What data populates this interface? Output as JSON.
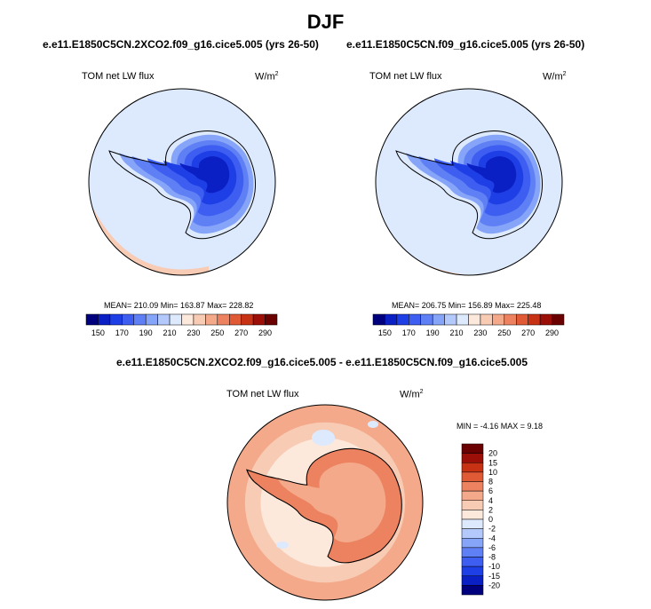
{
  "figure": {
    "title": "DJF",
    "panels": [
      {
        "title": "e.e11.E1850C5CN.2XCO2.f09_g16.cice5.005 (yrs 26-50)",
        "variable": "TOM net LW flux",
        "units_base": "W/m",
        "units_exp": "2",
        "stats": "MEAN= 210.09  Min= 163.87  Max= 228.82"
      },
      {
        "title": "e.e11.E1850C5CN.f09_g16.cice5.005 (yrs 26-50)",
        "variable": "TOM net LW flux",
        "units_base": "W/m",
        "units_exp": "2",
        "stats": "MEAN= 206.75  Min= 156.89  Max= 225.48"
      },
      {
        "title": "e.e11.E1850C5CN.2XCO2.f09_g16.cice5.005 - e.e11.E1850C5CN.f09_g16.cice5.005",
        "variable": "TOM net LW flux",
        "units_base": "W/m",
        "units_exp": "2",
        "stats": "MIN =  -4.16 MAX =   9.18"
      }
    ]
  },
  "chart_data": [
    {
      "type": "heatmap",
      "projection": "south-polar-stereographic",
      "title": "e.e11.E1850C5CN.2XCO2.f09_g16.cice5.005 (yrs 26-50)",
      "variable": "TOM net LW flux",
      "units": "W/m2",
      "stats": {
        "mean": 210.09,
        "min": 163.87,
        "max": 228.82
      },
      "colorbar": {
        "orientation": "horizontal",
        "levels": [
          150,
          160,
          170,
          180,
          190,
          200,
          210,
          220,
          230,
          240,
          250,
          260,
          270,
          280,
          290
        ],
        "tick_labels": [
          "150",
          "170",
          "190",
          "210",
          "230",
          "250",
          "270",
          "290"
        ],
        "colors": [
          "#00007f",
          "#0a1fc4",
          "#1f3fe6",
          "#3d5ef0",
          "#5f7ff5",
          "#86a4f8",
          "#b4c9fb",
          "#dde9fd",
          "#fde8dc",
          "#f8cbb4",
          "#f3a98a",
          "#ec825f",
          "#e05a36",
          "#c83214",
          "#9c0f08",
          "#6a0000"
        ]
      }
    },
    {
      "type": "heatmap",
      "projection": "south-polar-stereographic",
      "title": "e.e11.E1850C5CN.f09_g16.cice5.005 (yrs 26-50)",
      "variable": "TOM net LW flux",
      "units": "W/m2",
      "stats": {
        "mean": 206.75,
        "min": 156.89,
        "max": 225.48
      },
      "colorbar": {
        "orientation": "horizontal",
        "levels": [
          150,
          160,
          170,
          180,
          190,
          200,
          210,
          220,
          230,
          240,
          250,
          260,
          270,
          280,
          290
        ],
        "tick_labels": [
          "150",
          "170",
          "190",
          "210",
          "230",
          "250",
          "270",
          "290"
        ],
        "colors": [
          "#00007f",
          "#0a1fc4",
          "#1f3fe6",
          "#3d5ef0",
          "#5f7ff5",
          "#86a4f8",
          "#b4c9fb",
          "#dde9fd",
          "#fde8dc",
          "#f8cbb4",
          "#f3a98a",
          "#ec825f",
          "#e05a36",
          "#c83214",
          "#9c0f08",
          "#6a0000"
        ]
      }
    },
    {
      "type": "heatmap",
      "projection": "south-polar-stereographic",
      "title": "e.e11.E1850C5CN.2XCO2.f09_g16.cice5.005 - e.e11.E1850C5CN.f09_g16.cice5.005",
      "variable": "TOM net LW flux",
      "units": "W/m2",
      "stats": {
        "min": -4.16,
        "max": 9.18
      },
      "colorbar": {
        "orientation": "vertical",
        "levels": [
          -20,
          -15,
          -10,
          -8,
          -6,
          -4,
          -2,
          0,
          2,
          4,
          6,
          8,
          10,
          15,
          20
        ],
        "tick_labels": [
          "20",
          "15",
          "10",
          "8",
          "6",
          "4",
          "2",
          "0",
          "-2",
          "-4",
          "-6",
          "-8",
          "-10",
          "-15",
          "-20"
        ],
        "colors": [
          "#00007f",
          "#0a1fc4",
          "#1f3fe6",
          "#3d5ef0",
          "#5f7ff5",
          "#86a4f8",
          "#b4c9fb",
          "#dde9fd",
          "#fde8dc",
          "#f8cbb4",
          "#f3a98a",
          "#ec825f",
          "#e05a36",
          "#c83214",
          "#9c0f08",
          "#6a0000"
        ]
      }
    }
  ]
}
